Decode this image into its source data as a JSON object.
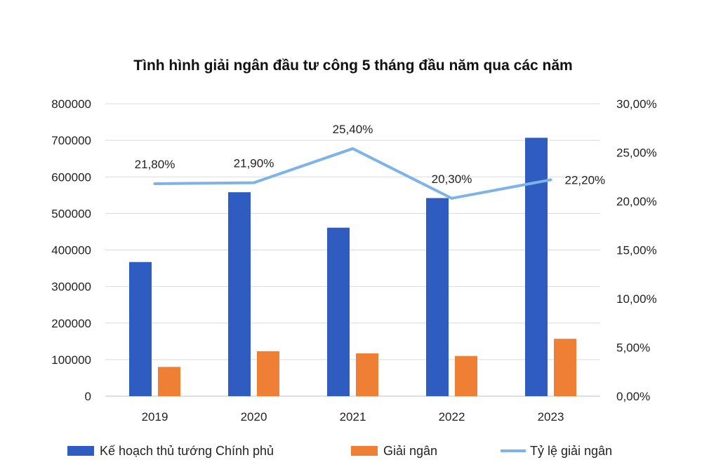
{
  "chart_data": {
    "type": "bar",
    "title": "Tình hình giải ngân đầu tư công 5 tháng đầu năm qua các năm",
    "categories": [
      "2019",
      "2020",
      "2021",
      "2022",
      "2023"
    ],
    "series": [
      {
        "name": "Kế hoạch thủ tướng Chính phủ",
        "type": "bar",
        "axis": "left",
        "color": "#2f5cc0",
        "values": [
          367000,
          558000,
          461000,
          542000,
          707000
        ]
      },
      {
        "name": "Giải ngân",
        "type": "bar",
        "axis": "left",
        "color": "#ef7f34",
        "values": [
          80000,
          123000,
          117000,
          110000,
          157000
        ]
      },
      {
        "name": "Tỷ lệ giải ngân",
        "type": "line",
        "axis": "right",
        "color": "#7eb3e8",
        "values": [
          21.8,
          21.9,
          25.4,
          20.3,
          22.2
        ],
        "labels": [
          "21,80%",
          "21,90%",
          "25,40%",
          "20,30%",
          "22,20%"
        ]
      }
    ],
    "y_left": {
      "min": 0,
      "max": 800000,
      "ticks": [
        "0",
        "100000",
        "200000",
        "300000",
        "400000",
        "500000",
        "600000",
        "700000",
        "800000"
      ]
    },
    "y_right": {
      "min": 0,
      "max": 30,
      "ticks": [
        "0,00%",
        "5,00%",
        "10,00%",
        "15,00%",
        "20,00%",
        "25,00%",
        "30,00%"
      ]
    },
    "grid": true,
    "legend": "bottom"
  }
}
